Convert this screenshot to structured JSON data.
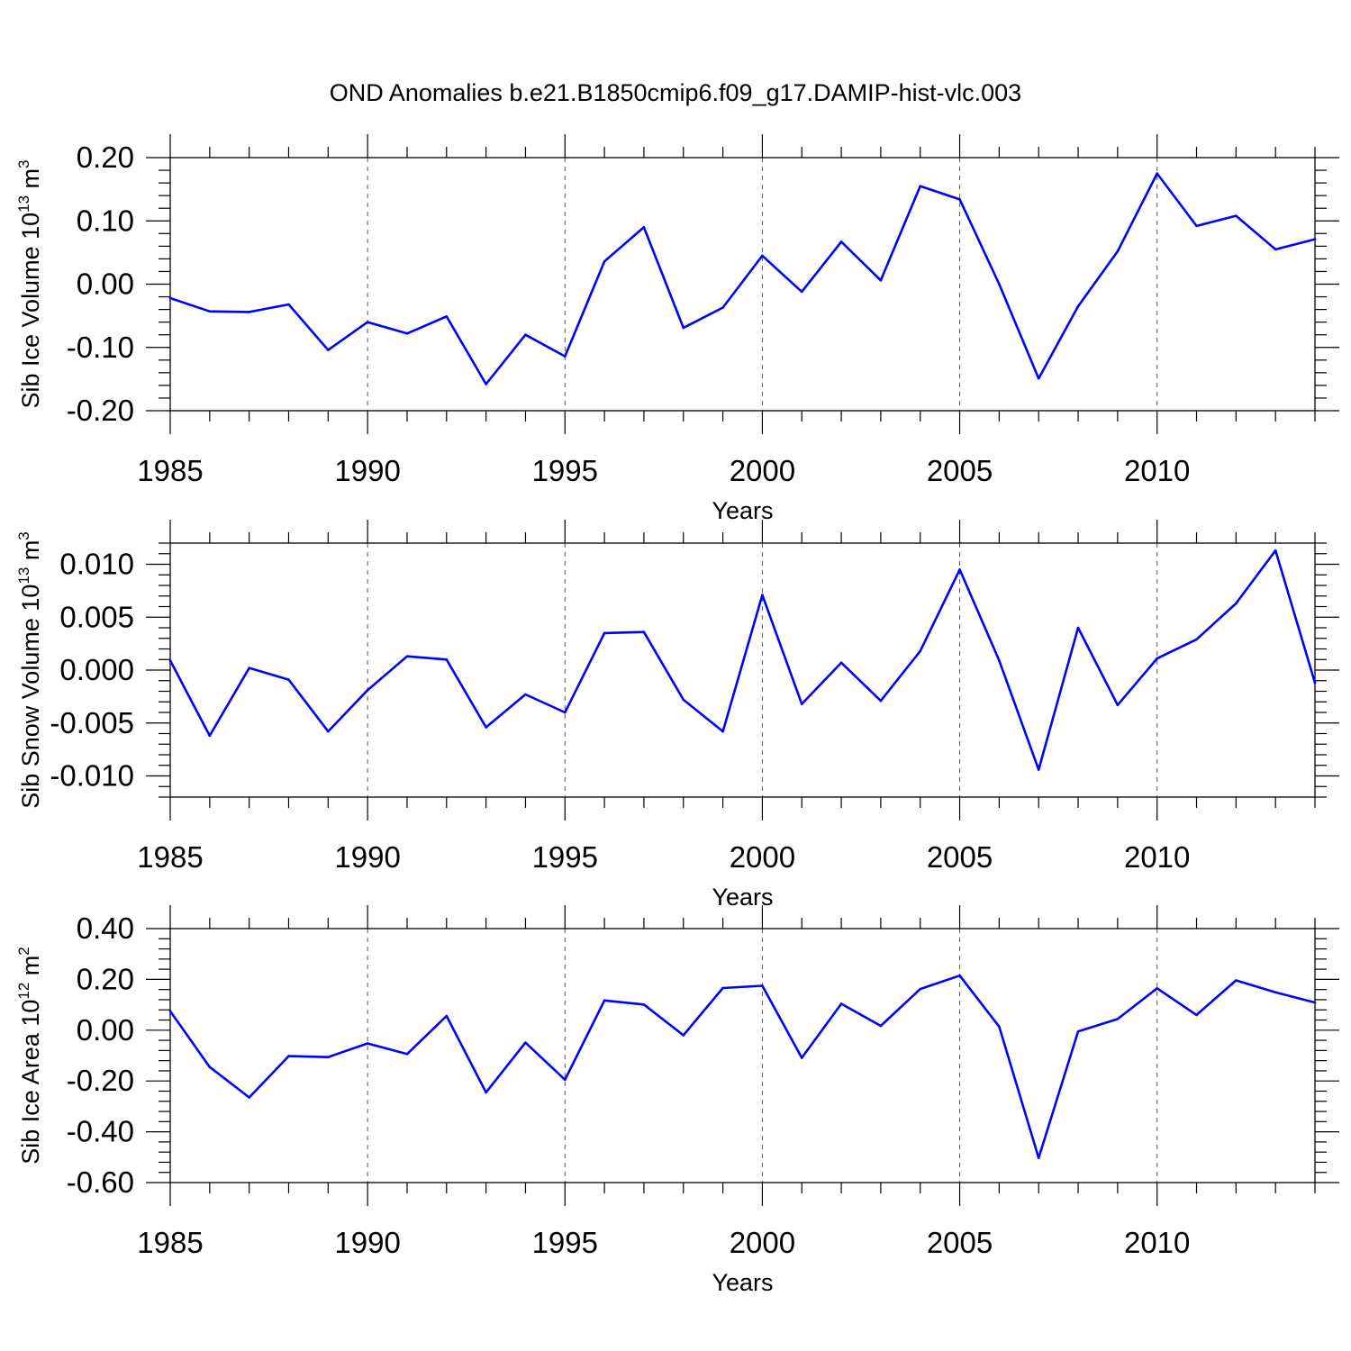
{
  "title": "OND Anomalies b.e21.B1850cmip6.f09_g17.DAMIP-hist-vlc.003",
  "colors": {
    "line": "#0000ff",
    "grid": "#555555",
    "axis": "#000000"
  },
  "chart_data": [
    {
      "type": "line",
      "ylabel": "Sib Ice Volume 10",
      "ylabel_sup": "13",
      "ylabel_unit": " m",
      "ylabel_unit_sup": "3",
      "xlabel": "Years",
      "xlim": [
        1985,
        2014
      ],
      "ylim": [
        -0.2,
        0.2
      ],
      "x_ticks": [
        1985,
        1990,
        1995,
        2000,
        2005,
        2010
      ],
      "x_tick_labels": [
        "1985",
        "1990",
        "1995",
        "2000",
        "2005",
        "2010"
      ],
      "y_ticks": [
        -0.2,
        -0.1,
        0.0,
        0.1,
        0.2
      ],
      "y_tick_labels": [
        "-0.20",
        "-0.10",
        "0.00",
        "0.10",
        "0.20"
      ],
      "grid": "vertical dashed at labeled years",
      "x": [
        1985,
        1986,
        1987,
        1988,
        1989,
        1990,
        1991,
        1992,
        1993,
        1994,
        1995,
        1996,
        1997,
        1998,
        1999,
        2000,
        2001,
        2002,
        2003,
        2004,
        2005,
        2006,
        2007,
        2008,
        2009,
        2010,
        2011,
        2012,
        2013,
        2014
      ],
      "series": [
        {
          "values": [
            -0.022,
            -0.043,
            -0.044,
            -0.032,
            -0.104,
            -0.06,
            -0.078,
            -0.051,
            -0.158,
            -0.08,
            -0.114,
            0.036,
            0.09,
            -0.069,
            -0.037,
            0.045,
            -0.012,
            0.067,
            0.006,
            0.155,
            0.134,
            0.0,
            -0.149,
            -0.035,
            0.052,
            0.175,
            0.092,
            0.108,
            0.055,
            0.071
          ]
        }
      ]
    },
    {
      "type": "line",
      "ylabel": "Sib Snow Volume 10",
      "ylabel_sup": "13",
      "ylabel_unit": " m",
      "ylabel_unit_sup": "3",
      "xlabel": "Years",
      "xlim": [
        1985,
        2014
      ],
      "ylim": [
        -0.012,
        0.012
      ],
      "x_ticks": [
        1985,
        1990,
        1995,
        2000,
        2005,
        2010
      ],
      "x_tick_labels": [
        "1985",
        "1990",
        "1995",
        "2000",
        "2005",
        "2010"
      ],
      "y_ticks": [
        -0.01,
        -0.005,
        0.0,
        0.005,
        0.01
      ],
      "y_tick_labels": [
        "-0.010",
        "-0.005",
        "0.000",
        "0.005",
        "0.010"
      ],
      "grid": "vertical dashed at labeled years",
      "x": [
        1985,
        1986,
        1987,
        1988,
        1989,
        1990,
        1991,
        1992,
        1993,
        1994,
        1995,
        1996,
        1997,
        1998,
        1999,
        2000,
        2001,
        2002,
        2003,
        2004,
        2005,
        2006,
        2007,
        2008,
        2009,
        2010,
        2011,
        2012,
        2013,
        2014
      ],
      "series": [
        {
          "values": [
            0.0009,
            -0.0062,
            0.0002,
            -0.0009,
            -0.0058,
            -0.0019,
            0.0013,
            0.001,
            -0.0054,
            -0.0023,
            -0.004,
            0.0035,
            0.0036,
            -0.0028,
            -0.0058,
            0.0071,
            -0.0032,
            0.0007,
            -0.0029,
            0.0018,
            0.0095,
            0.0009,
            -0.0094,
            0.004,
            -0.0033,
            0.0011,
            0.0029,
            0.0063,
            0.0113,
            -0.0012
          ]
        }
      ]
    },
    {
      "type": "line",
      "ylabel": "Sib Ice Area 10",
      "ylabel_sup": "12",
      "ylabel_unit": " m",
      "ylabel_unit_sup": "2",
      "xlabel": "Years",
      "xlim": [
        1985,
        2014
      ],
      "ylim": [
        -0.6,
        0.4
      ],
      "x_ticks": [
        1985,
        1990,
        1995,
        2000,
        2005,
        2010
      ],
      "x_tick_labels": [
        "1985",
        "1990",
        "1995",
        "2000",
        "2005",
        "2010"
      ],
      "y_ticks": [
        -0.6,
        -0.4,
        -0.2,
        0.0,
        0.2,
        0.4
      ],
      "y_tick_labels": [
        "-0.60",
        "-0.40",
        "-0.20",
        "0.00",
        "0.20",
        "0.40"
      ],
      "grid": "vertical dashed at labeled years",
      "x": [
        1985,
        1986,
        1987,
        1988,
        1989,
        1990,
        1991,
        1992,
        1993,
        1994,
        1995,
        1996,
        1997,
        1998,
        1999,
        2000,
        2001,
        2002,
        2003,
        2004,
        2005,
        2006,
        2007,
        2008,
        2009,
        2010,
        2011,
        2012,
        2013,
        2014
      ],
      "series": [
        {
          "values": [
            0.075,
            -0.145,
            -0.265,
            -0.102,
            -0.106,
            -0.052,
            -0.094,
            0.056,
            -0.245,
            -0.049,
            -0.195,
            0.117,
            0.101,
            -0.02,
            0.166,
            0.175,
            -0.109,
            0.104,
            0.017,
            0.162,
            0.215,
            0.014,
            -0.503,
            -0.005,
            0.044,
            0.165,
            0.06,
            0.196,
            0.149,
            0.109
          ]
        }
      ]
    }
  ]
}
